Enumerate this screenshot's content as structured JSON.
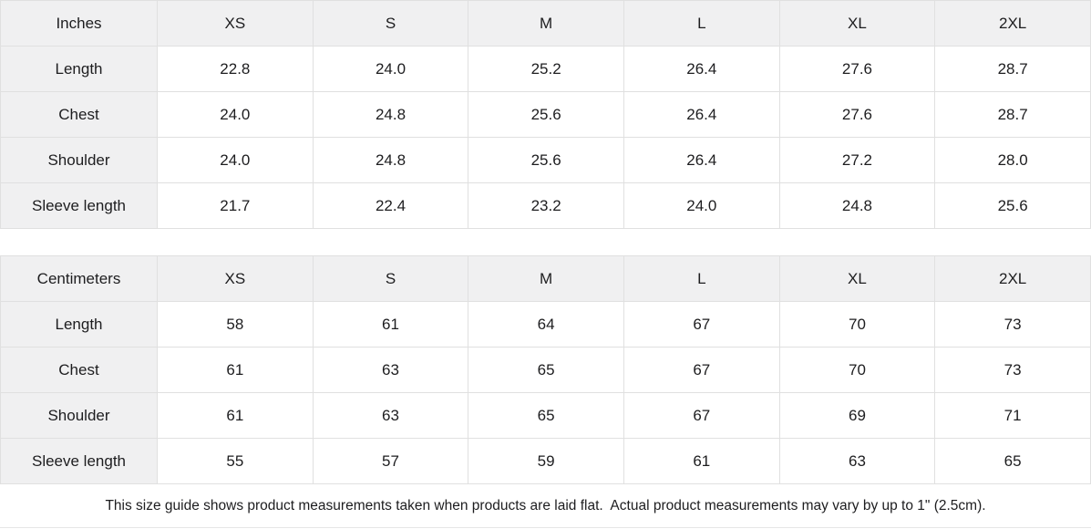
{
  "tables": [
    {
      "name": "inches",
      "unit_label": "Inches",
      "header": [
        "Inches",
        "XS",
        "S",
        "M",
        "L",
        "XL",
        "2XL"
      ],
      "rows": [
        [
          "Length",
          "22.8",
          "24.0",
          "25.2",
          "26.4",
          "27.6",
          "28.7"
        ],
        [
          "Chest",
          "24.0",
          "24.8",
          "25.6",
          "26.4",
          "27.6",
          "28.7"
        ],
        [
          "Shoulder",
          "24.0",
          "24.8",
          "25.6",
          "26.4",
          "27.2",
          "28.0"
        ],
        [
          "Sleeve length",
          "21.7",
          "22.4",
          "23.2",
          "24.0",
          "24.8",
          "25.6"
        ]
      ]
    },
    {
      "name": "centimeters",
      "unit_label": "Centimeters",
      "header": [
        "Centimeters",
        "XS",
        "S",
        "M",
        "L",
        "XL",
        "2XL"
      ],
      "rows": [
        [
          "Length",
          "58",
          "61",
          "64",
          "67",
          "70",
          "73"
        ],
        [
          "Chest",
          "61",
          "63",
          "65",
          "67",
          "70",
          "73"
        ],
        [
          "Shoulder",
          "61",
          "63",
          "65",
          "67",
          "69",
          "71"
        ],
        [
          "Sleeve length",
          "55",
          "57",
          "59",
          "61",
          "63",
          "65"
        ]
      ]
    }
  ],
  "disclaimer": "This size guide shows product measurements taken when products are laid flat.  Actual product measurements may vary by up to 1\" (2.5cm).",
  "colors": {
    "header_bg": "#f0f0f1",
    "border": "#e0e0e0",
    "text": "#1d1d1f"
  }
}
